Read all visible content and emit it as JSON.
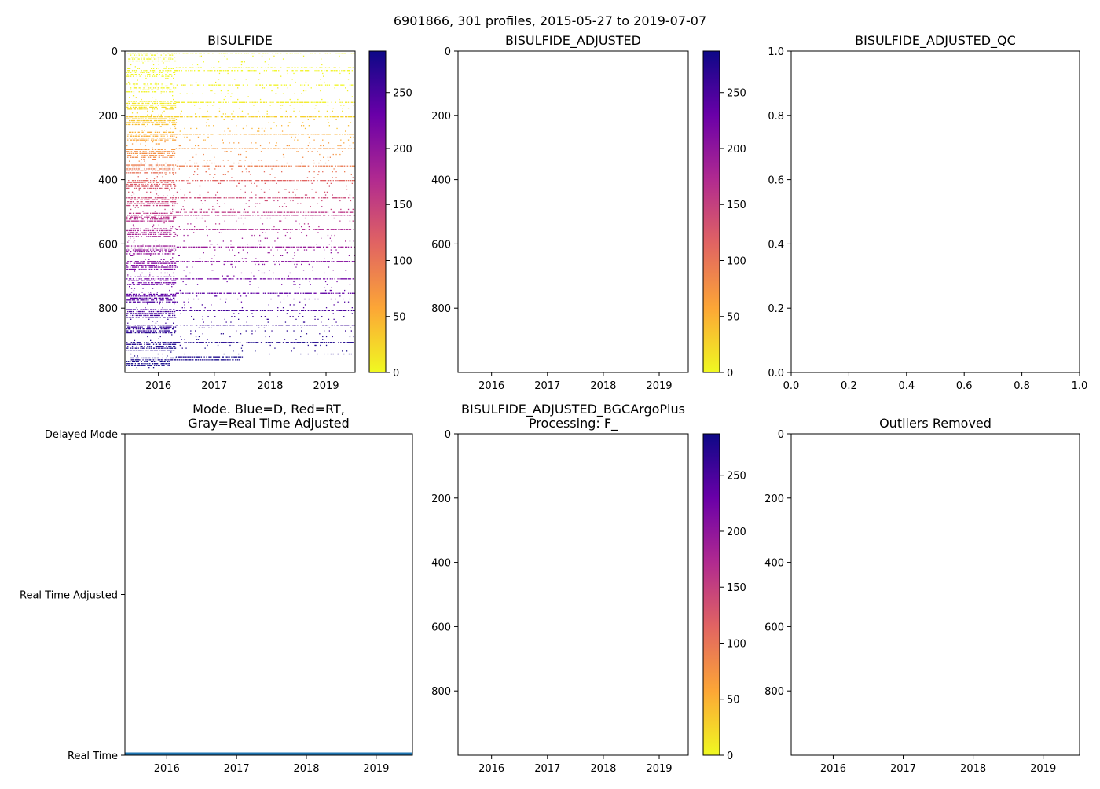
{
  "suptitle": "6901866, 301 profiles, 2015-05-27 to 2019-07-07",
  "colors": {
    "mode_line": "#1f77b4",
    "axis": "#000000"
  },
  "colorbar": {
    "cmap": "plasma_r",
    "stops": [
      "#f0f921",
      "#fca636",
      "#e16462",
      "#b12a90",
      "#6a00a8",
      "#0d0887"
    ],
    "ticks": [
      "0",
      "50",
      "100",
      "150",
      "200",
      "250"
    ],
    "tick_values": [
      0,
      50,
      100,
      150,
      200,
      250
    ],
    "range": [
      0,
      287
    ]
  },
  "chart_data": [
    {
      "id": "bisulfide",
      "type": "heatmap",
      "title": "BISULFIDE",
      "xlim": [
        2015.4,
        2019.52
      ],
      "ylim": [
        0,
        1000
      ],
      "yinverted": true,
      "xticks": [
        "2016",
        "2017",
        "2018",
        "2019"
      ],
      "xtick_values": [
        2016,
        2017,
        2018,
        2019
      ],
      "yticks": [
        "0",
        "200",
        "400",
        "600",
        "800"
      ],
      "ytick_values": [
        0,
        200,
        400,
        600,
        800
      ],
      "has_colorbar": true,
      "has_data": true,
      "data_pattern": "sparse scattered samples; values near 0 above ~150 dbar, rising to ~120 near 400 dbar and ~280 below 850 dbar; banded every ~50 dbar",
      "depth_value_profile": [
        [
          0,
          0
        ],
        [
          150,
          5
        ],
        [
          250,
          50
        ],
        [
          350,
          90
        ],
        [
          420,
          125
        ],
        [
          500,
          160
        ],
        [
          600,
          190
        ],
        [
          700,
          220
        ],
        [
          800,
          250
        ],
        [
          900,
          275
        ],
        [
          1000,
          287
        ]
      ]
    },
    {
      "id": "bisulfide-adjusted",
      "type": "heatmap",
      "title": "BISULFIDE_ADJUSTED",
      "xlim": [
        2015.4,
        2019.52
      ],
      "ylim": [
        0,
        1000
      ],
      "yinverted": true,
      "xticks": [
        "2016",
        "2017",
        "2018",
        "2019"
      ],
      "xtick_values": [
        2016,
        2017,
        2018,
        2019
      ],
      "yticks": [
        "0",
        "200",
        "400",
        "600",
        "800"
      ],
      "ytick_values": [
        0,
        200,
        400,
        600,
        800
      ],
      "has_colorbar": true,
      "has_data": false
    },
    {
      "id": "bisulfide-adjusted-qc",
      "type": "scatter",
      "title": "BISULFIDE_ADJUSTED_QC",
      "xlim": [
        0,
        1
      ],
      "ylim": [
        0,
        1
      ],
      "yinverted": false,
      "xticks": [
        "0.0",
        "0.2",
        "0.4",
        "0.6",
        "0.8",
        "1.0"
      ],
      "xtick_values": [
        0,
        0.2,
        0.4,
        0.6,
        0.8,
        1.0
      ],
      "yticks": [
        "0.0",
        "0.2",
        "0.4",
        "0.6",
        "0.8",
        "1.0"
      ],
      "ytick_values": [
        0,
        0.2,
        0.4,
        0.6,
        0.8,
        1.0
      ],
      "has_colorbar": false,
      "has_data": false
    },
    {
      "id": "mode",
      "type": "line",
      "title": "Mode. Blue=D, Red=RT,",
      "title2": "Gray=Real Time Adjusted",
      "xlim": [
        2015.4,
        2019.52
      ],
      "ylim": [
        0,
        2
      ],
      "yinverted": true,
      "xticks": [
        "2016",
        "2017",
        "2018",
        "2019"
      ],
      "xtick_values": [
        2016,
        2017,
        2018,
        2019
      ],
      "yticks": [
        "Delayed Mode",
        "Real Time Adjusted",
        "Real Time"
      ],
      "ytick_values": [
        0,
        1,
        2
      ],
      "has_colorbar": false,
      "has_data": true,
      "series": [
        {
          "name": "mode",
          "x": [
            2015.4,
            2019.52
          ],
          "values": [
            1.99,
            1.99
          ]
        }
      ]
    },
    {
      "id": "bgcargoplus",
      "type": "heatmap",
      "title": "BISULFIDE_ADJUSTED_BGCArgoPlus",
      "title2": "Processing: F_",
      "xlim": [
        2015.4,
        2019.52
      ],
      "ylim": [
        0,
        1000
      ],
      "yinverted": true,
      "xticks": [
        "2016",
        "2017",
        "2018",
        "2019"
      ],
      "xtick_values": [
        2016,
        2017,
        2018,
        2019
      ],
      "yticks": [
        "0",
        "200",
        "400",
        "600",
        "800"
      ],
      "ytick_values": [
        0,
        200,
        400,
        600,
        800
      ],
      "has_colorbar": true,
      "has_data": false
    },
    {
      "id": "outliers-removed",
      "type": "heatmap",
      "title": "Outliers Removed",
      "xlim": [
        2015.4,
        2019.52
      ],
      "ylim": [
        0,
        1000
      ],
      "yinverted": true,
      "xticks": [
        "2016",
        "2017",
        "2018",
        "2019"
      ],
      "xtick_values": [
        2016,
        2017,
        2018,
        2019
      ],
      "yticks": [
        "0",
        "200",
        "400",
        "600",
        "800"
      ],
      "ytick_values": [
        0,
        200,
        400,
        600,
        800
      ],
      "has_colorbar": false,
      "has_data": false
    }
  ]
}
